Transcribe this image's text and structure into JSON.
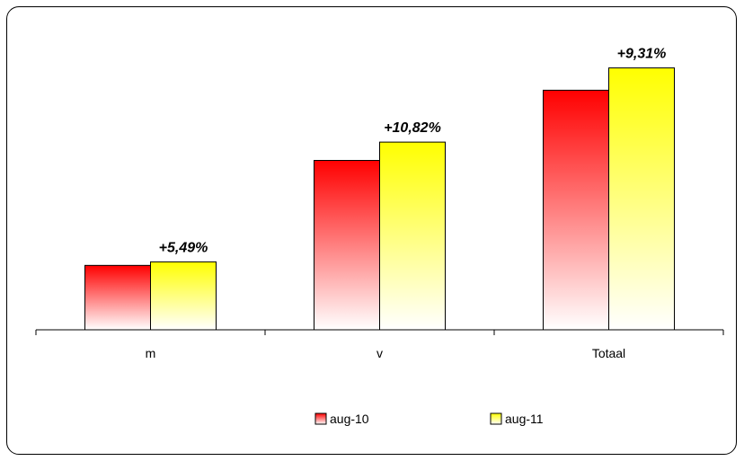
{
  "chart_data": {
    "type": "bar",
    "categories": [
      "m",
      "v",
      "Totaal"
    ],
    "series": [
      {
        "name": "aug-10",
        "values": [
          100,
          263,
          372
        ]
      },
      {
        "name": "aug-11",
        "values": [
          105.49,
          291.46,
          406.63
        ]
      }
    ],
    "data_labels": [
      "+5,49%",
      "+10,82%",
      "+9,31%"
    ],
    "ylim": [
      0,
      420
    ],
    "grid": false,
    "legend_position": "bottom",
    "colors": {
      "aug-10": {
        "top": "#ff0000",
        "bottom": "#ffffff"
      },
      "aug-11": {
        "top": "#ffff00",
        "bottom": "#ffffff"
      }
    }
  }
}
